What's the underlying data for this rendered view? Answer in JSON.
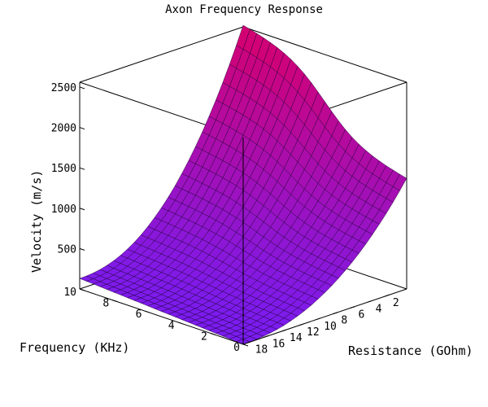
{
  "chart_data": {
    "type": "surface",
    "title": "Axon Frequency Response",
    "x_axis": {
      "label": "Frequency (KHz)",
      "ticks": [
        "0",
        "2",
        "4",
        "6",
        "8",
        "10"
      ],
      "range": [
        0,
        10
      ]
    },
    "y_axis": {
      "label": "Resistance (GOhm)",
      "ticks": [
        "2",
        "4",
        "6",
        "8",
        "10",
        "12",
        "14",
        "16",
        "18"
      ],
      "range": [
        0,
        19
      ]
    },
    "z_axis": {
      "label": "Velocity (m/s)",
      "ticks": [
        "500",
        "1000",
        "1500",
        "2000",
        "2500"
      ],
      "range": [
        0,
        2560
      ]
    },
    "corner_values": [
      {
        "frequency": 0,
        "resistance": 19,
        "velocity": 0
      },
      {
        "frequency": 10,
        "resistance": 19,
        "velocity": 130
      },
      {
        "frequency": 0,
        "resistance": 0,
        "velocity": 1370
      },
      {
        "frequency": 10,
        "resistance": 0,
        "velocity": 2580
      }
    ],
    "colors": {
      "low": "#7a1cf0",
      "high": "#d6006e",
      "grid_line": "#1a0030"
    }
  }
}
